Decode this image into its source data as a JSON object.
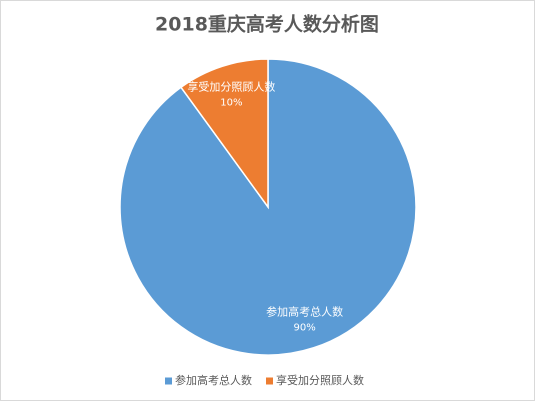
{
  "chart_data": {
    "type": "pie",
    "title": "2018重庆高考人数分析图",
    "categories": [
      "参加高考总人数",
      "享受加分照顾人数"
    ],
    "values": [
      90,
      10
    ],
    "value_labels": [
      "90%",
      "10%"
    ],
    "colors": [
      "#5b9bd5",
      "#ed7d31"
    ],
    "legend": "bottom"
  }
}
